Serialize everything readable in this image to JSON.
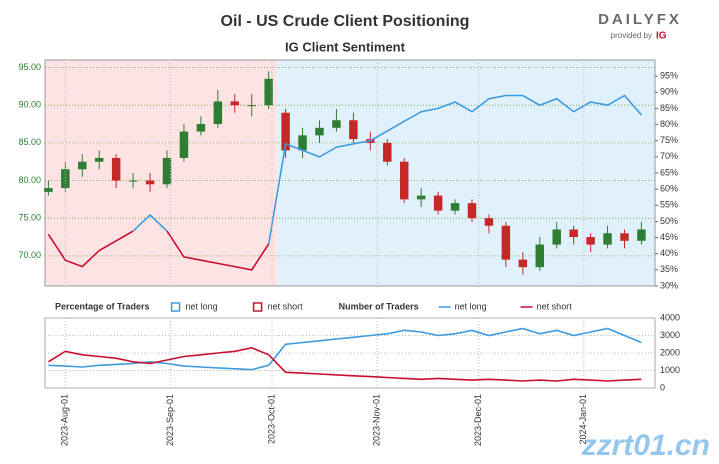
{
  "header": {
    "title": "Oil - US Crude Client Positioning",
    "subtitle": "IG Client Sentiment",
    "logo": "DAILYFX",
    "provided_by": "provided by",
    "brand": "IG"
  },
  "watermark": "zzrt01.cn",
  "chart_data": [
    {
      "type": "candlestick",
      "x": [
        "2023-07-27",
        "2023-08-01",
        "2023-08-06",
        "2023-08-11",
        "2023-08-16",
        "2023-08-21",
        "2023-08-26",
        "2023-08-31",
        "2023-09-05",
        "2023-09-10",
        "2023-09-15",
        "2023-09-20",
        "2023-09-25",
        "2023-09-30",
        "2023-10-05",
        "2023-10-10",
        "2023-10-15",
        "2023-10-20",
        "2023-10-25",
        "2023-10-30",
        "2023-11-04",
        "2023-11-09",
        "2023-11-14",
        "2023-11-19",
        "2023-11-24",
        "2023-11-29",
        "2023-12-04",
        "2023-12-09",
        "2023-12-14",
        "2023-12-19",
        "2023-12-24",
        "2023-12-29",
        "2024-01-03",
        "2024-01-08",
        "2024-01-13",
        "2024-01-18"
      ],
      "open": [
        78.5,
        79,
        81.5,
        82.5,
        83,
        80,
        80,
        79.5,
        83,
        86.5,
        87.5,
        90.5,
        90,
        90,
        89,
        84,
        86,
        87,
        88,
        85.5,
        85,
        82.5,
        77.5,
        78,
        76,
        77,
        75,
        74,
        69.5,
        68.5,
        71.5,
        73.5,
        72.5,
        71.5,
        73,
        72
      ],
      "close": [
        79,
        81.5,
        82.5,
        83,
        80,
        80,
        79.5,
        83,
        86.5,
        87.5,
        90.5,
        90,
        90,
        93.5,
        84,
        86,
        87,
        88,
        85.5,
        85,
        82.5,
        77.5,
        78,
        76,
        77,
        75,
        74,
        69.5,
        68.5,
        71.5,
        73.5,
        72.5,
        71.5,
        73,
        72,
        73.5
      ],
      "high": [
        80,
        82.5,
        83.5,
        84,
        83.5,
        81,
        81,
        84,
        87.5,
        88.5,
        92,
        91.5,
        91.5,
        94.5,
        89.5,
        87,
        88,
        89.5,
        89,
        86.5,
        85.5,
        83,
        79,
        78.5,
        77.5,
        77.5,
        75.5,
        74.5,
        70.5,
        72.5,
        74.5,
        74,
        73,
        74,
        73.5,
        74.5
      ],
      "low": [
        78,
        78.5,
        80.5,
        81.5,
        79,
        79,
        78.5,
        79,
        82.5,
        86,
        87,
        89,
        88.5,
        89.5,
        83,
        83,
        85,
        86.5,
        85,
        84,
        82,
        77,
        76.5,
        75.5,
        75.5,
        74.5,
        73,
        68.5,
        67.5,
        68,
        71,
        71.5,
        70.5,
        71,
        71,
        71.5
      ],
      "ylim": [
        66,
        96
      ],
      "yticks": [
        {
          "value": 70,
          "label": "70.00"
        },
        {
          "value": 75,
          "label": "75.00"
        },
        {
          "value": 80,
          "label": "80.00"
        },
        {
          "value": 85,
          "label": "85.00"
        },
        {
          "value": 90,
          "label": "90.00"
        },
        {
          "value": 95,
          "label": "95.00"
        }
      ],
      "up_color": "#2e7d32",
      "down_color": "#c62828",
      "series": [
        {
          "color": "#c8102e",
          "axis": "y2",
          "values": [
            46,
            38,
            36,
            41,
            44,
            47,
            null,
            47,
            39,
            38,
            37,
            36,
            35,
            43,
            null,
            null,
            null,
            null,
            null,
            null,
            null,
            null,
            null,
            null,
            null,
            null,
            null,
            null,
            null,
            null,
            null,
            null,
            null,
            null,
            null,
            null
          ]
        },
        {
          "color": "#3d9be0",
          "axis": "y2",
          "values": [
            null,
            null,
            null,
            null,
            null,
            47,
            52,
            47,
            null,
            null,
            null,
            null,
            null,
            43,
            74,
            72,
            70,
            73,
            74,
            75,
            78,
            81,
            84,
            85,
            87,
            84,
            88,
            89,
            89,
            86,
            88,
            84,
            87,
            86,
            89,
            83
          ]
        }
      ],
      "y2lim": [
        30,
        100
      ],
      "y2ticks": [
        {
          "value": 30,
          "label": "30%"
        },
        {
          "value": 35,
          "label": "35%"
        },
        {
          "value": 40,
          "label": "40%"
        },
        {
          "value": 45,
          "label": "45%"
        },
        {
          "value": 50,
          "label": "50%"
        },
        {
          "value": 55,
          "label": "55%"
        },
        {
          "value": 60,
          "label": "60%"
        },
        {
          "value": 65,
          "label": "65%"
        },
        {
          "value": 70,
          "label": "70%"
        },
        {
          "value": 75,
          "label": "75%"
        },
        {
          "value": 80,
          "label": "80%"
        },
        {
          "value": 85,
          "label": "85%"
        },
        {
          "value": 90,
          "label": "90%"
        },
        {
          "value": 95,
          "label": "95%"
        }
      ],
      "grid": true
    },
    {
      "type": "line",
      "legend_groups": [
        {
          "title": "Percentage of Traders",
          "items": [
            {
              "name": "net long",
              "color": "#3d9be0"
            },
            {
              "name": "net short",
              "color": "#c8102e"
            }
          ]
        },
        {
          "title": "Number of Traders",
          "items": [
            {
              "name": "net long",
              "color": "#3d9be0"
            },
            {
              "name": "net short",
              "color": "#c8102e"
            }
          ]
        }
      ],
      "series": [
        {
          "color": "#3d9be0",
          "values": [
            1300,
            1250,
            1200,
            1300,
            1350,
            1400,
            1500,
            1400,
            1250,
            1200,
            1150,
            1100,
            1050,
            1300,
            2500,
            2600,
            2700,
            2800,
            2900,
            3000,
            3100,
            3300,
            3200,
            3000,
            3100,
            3300,
            3000,
            3200,
            3400,
            3100,
            3300,
            3000,
            3200,
            3400,
            3000,
            2600
          ]
        },
        {
          "color": "#c8102e",
          "values": [
            1500,
            2100,
            1900,
            1800,
            1700,
            1500,
            1400,
            1600,
            1800,
            1900,
            2000,
            2100,
            2300,
            1900,
            900,
            850,
            800,
            750,
            700,
            650,
            600,
            550,
            500,
            550,
            500,
            450,
            500,
            450,
            400,
            450,
            400,
            500,
            450,
            400,
            450,
            500
          ]
        }
      ],
      "ylim": [
        0,
        4000
      ],
      "yticks": [
        0,
        1000,
        2000,
        3000,
        4000
      ],
      "xticks": [
        {
          "value": "2023-08-01",
          "label": "2023-Aug-01"
        },
        {
          "value": "2023-09-01",
          "label": "2023-Sep-01"
        },
        {
          "value": "2023-10-01",
          "label": "2023-Oct-01"
        },
        {
          "value": "2023-11-01",
          "label": "2023-Nov-01"
        },
        {
          "value": "2023-12-01",
          "label": "2023-Dec-01"
        },
        {
          "value": "2024-01-01",
          "label": "2024-Jan-01"
        }
      ],
      "grid": true
    }
  ]
}
